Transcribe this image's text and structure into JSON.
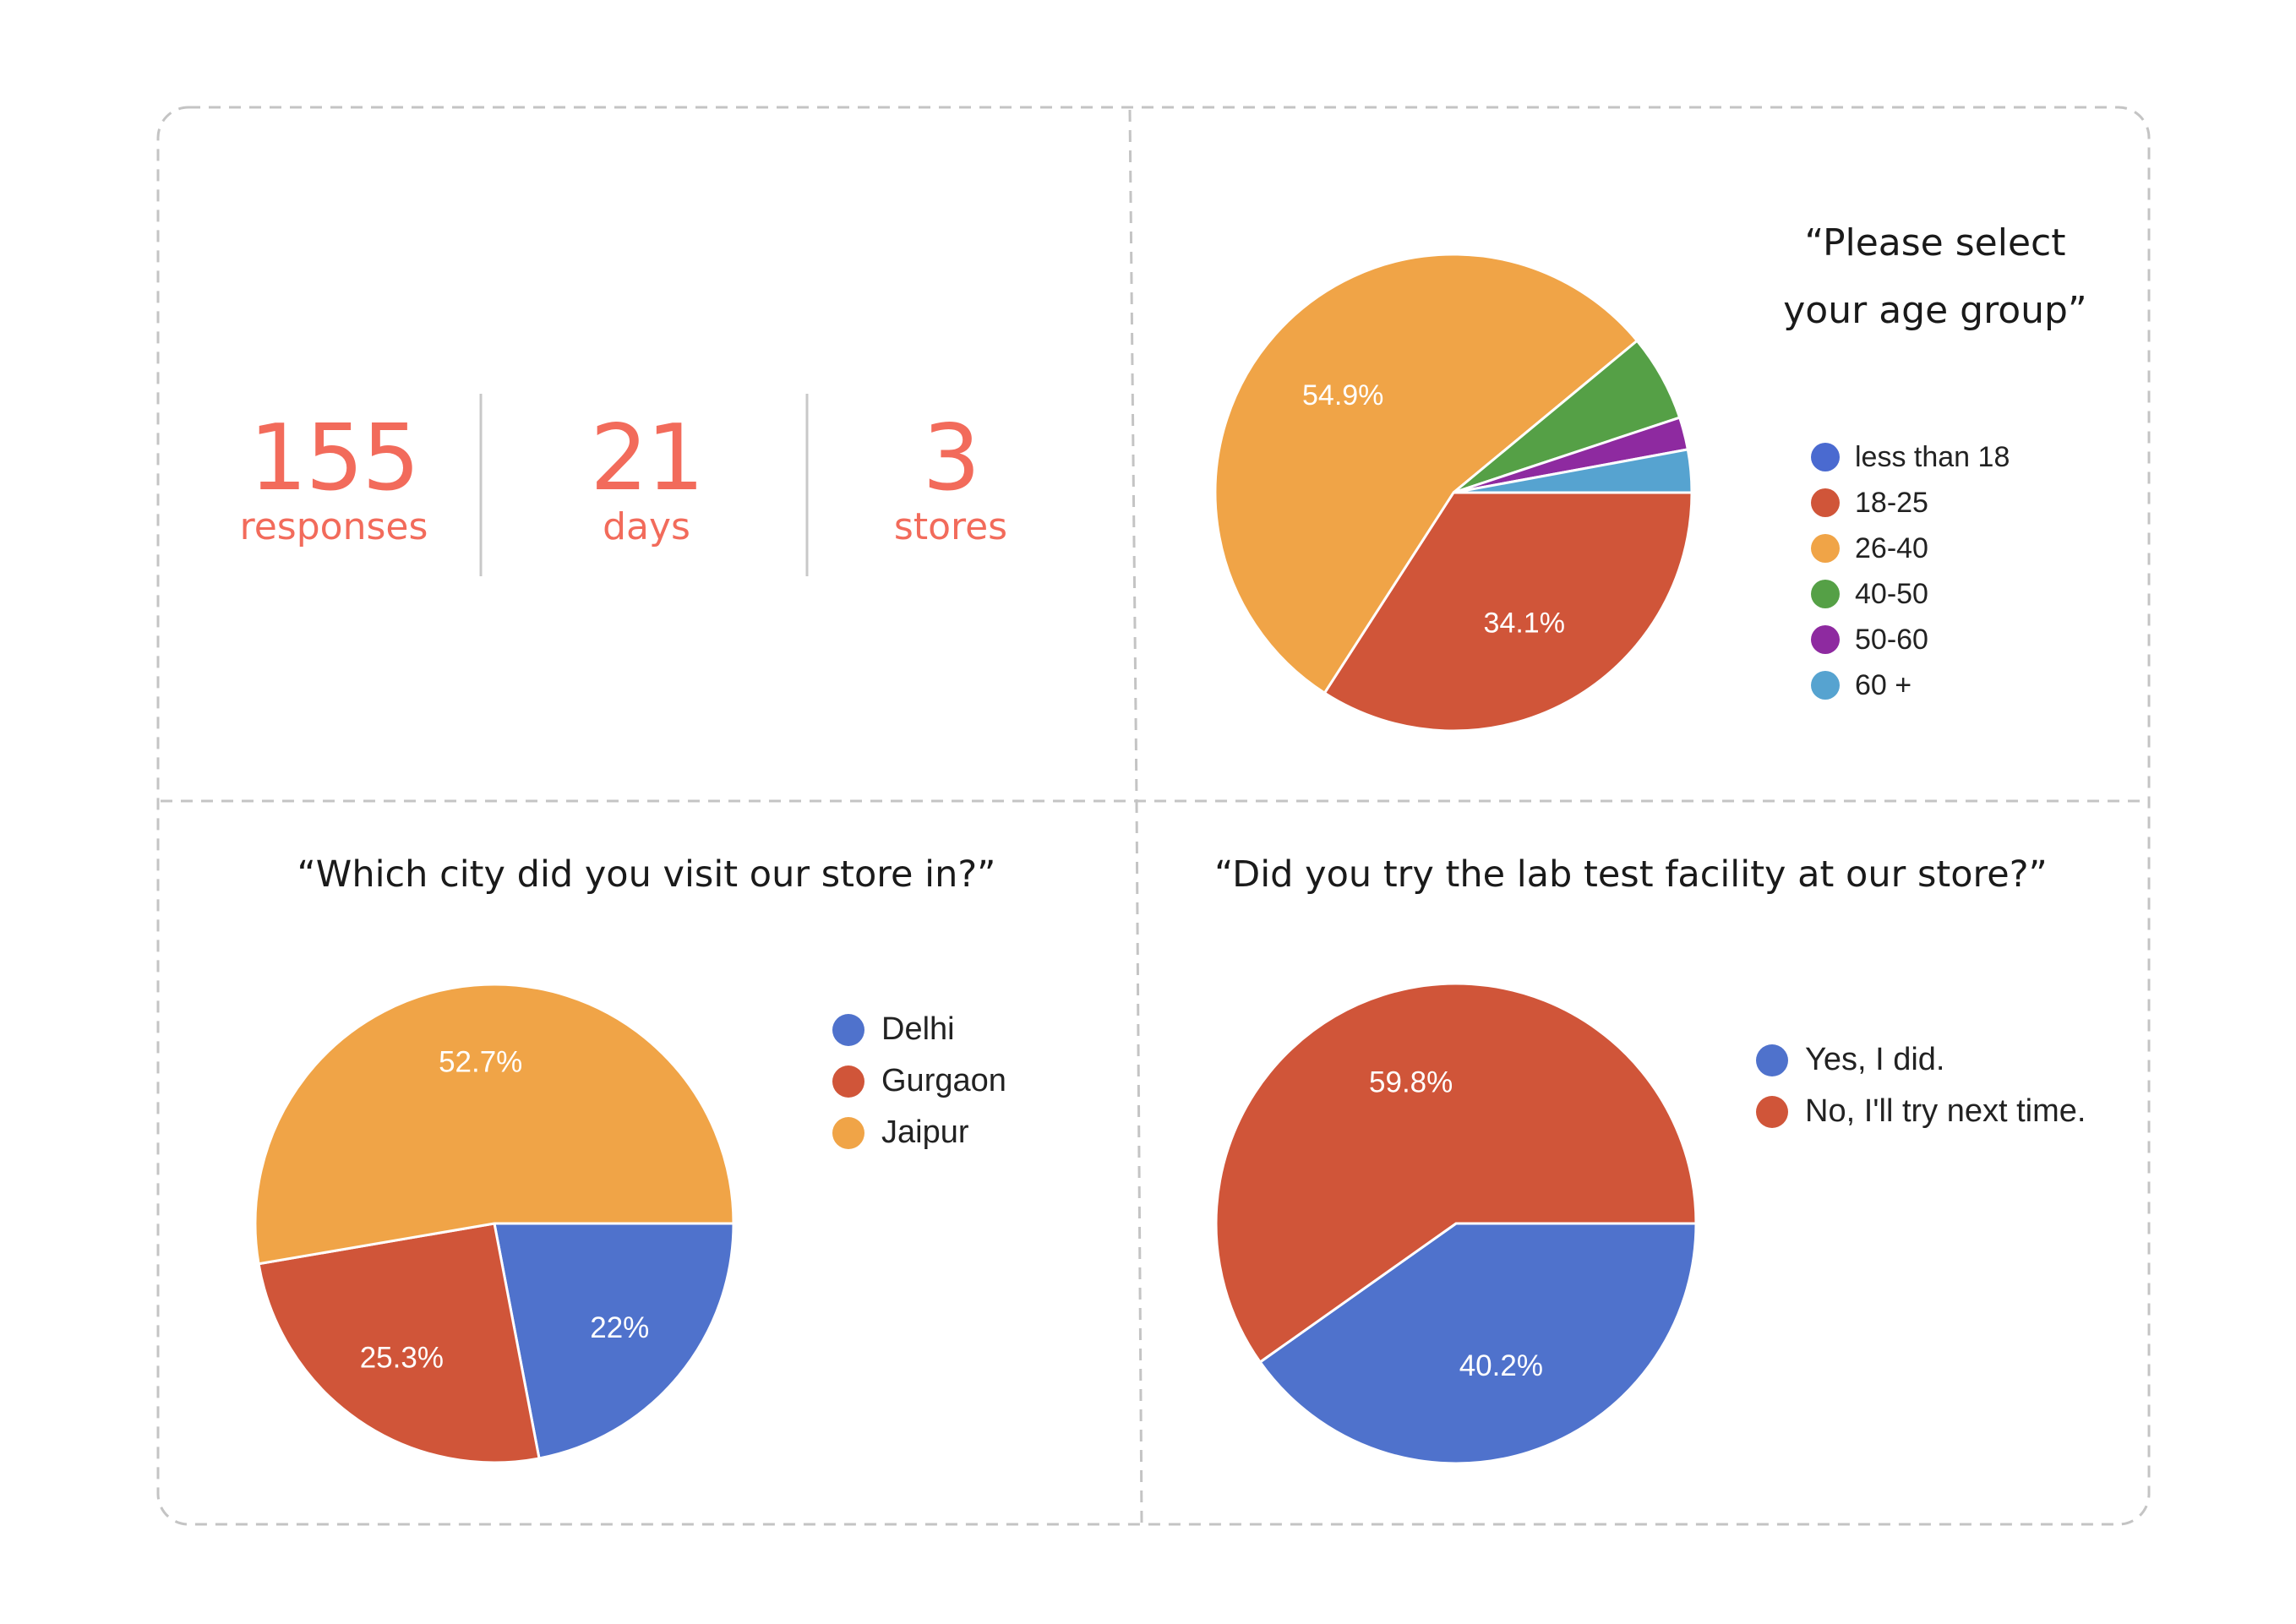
{
  "stats": [
    {
      "value": "155",
      "label": "responses"
    },
    {
      "value": "21",
      "label": "days"
    },
    {
      "value": "3",
      "label": "stores"
    }
  ],
  "accent_color": "#f26b5b",
  "chart_data": [
    {
      "type": "pie",
      "title_line1": "“Please select",
      "title_line2": "your age group”",
      "categories": [
        "less than 18",
        "18-25",
        "26-40",
        "40-50",
        "50-60",
        "60 +"
      ],
      "values": [
        0,
        34.1,
        54.9,
        5.9,
        2.2,
        2.9
      ],
      "slice_labels": [
        "",
        "34.1%",
        "54.9%",
        "",
        "",
        ""
      ],
      "colors": [
        "#4a6ad0",
        "#d05539",
        "#f0a447",
        "#55a046",
        "#8e2aa0",
        "#56a3d0"
      ],
      "legend": "right"
    },
    {
      "type": "pie",
      "title": "“Which city did you visit our store in?”",
      "categories": [
        "Delhi",
        "Gurgaon",
        "Jaipur"
      ],
      "values": [
        22,
        25.3,
        52.7
      ],
      "slice_labels": [
        "22%",
        "25.3%",
        "52.7%"
      ],
      "colors": [
        "#4f72cc",
        "#d05539",
        "#f0a447"
      ],
      "legend": "right"
    },
    {
      "type": "pie",
      "title": "“Did you try the lab test facility at our store?”",
      "categories": [
        "Yes, I did.",
        "No, I'll try next time."
      ],
      "values": [
        40.2,
        59.8
      ],
      "slice_labels": [
        "40.2%",
        "59.8%"
      ],
      "colors": [
        "#4f72cc",
        "#d05539"
      ],
      "legend": "right"
    }
  ]
}
